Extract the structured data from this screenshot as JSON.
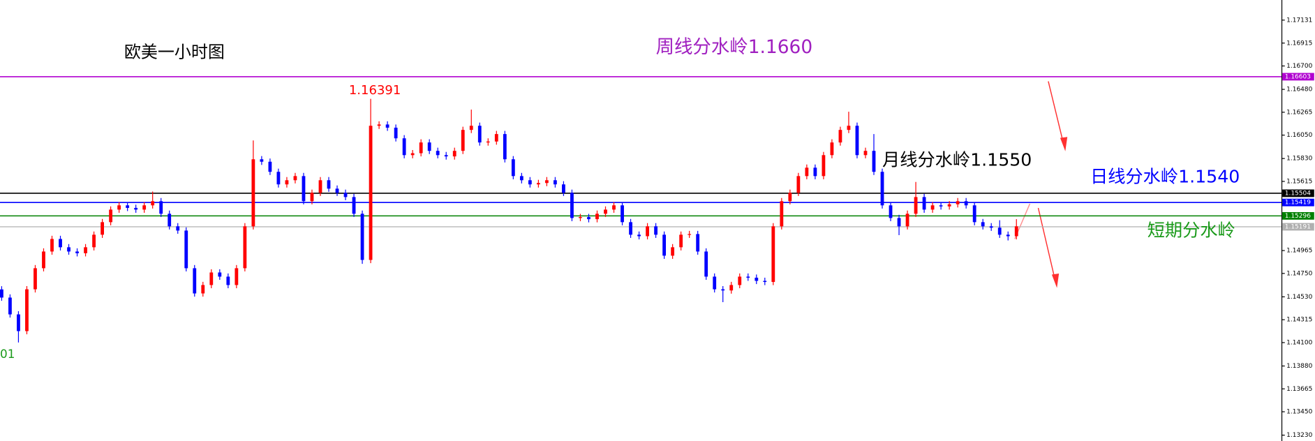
{
  "chart_data": {
    "type": "candlestick",
    "title": "欧美一小时图",
    "up_color": "#ff0000",
    "down_color": "#0000ff",
    "ylim": [
      1.13175,
      1.1732
    ],
    "yticks": [
      1.17131,
      1.16915,
      {
        "value": 1.167,
        "label": "1.16700"
      },
      {
        "value": 1.1648,
        "label": "1.16480"
      },
      1.16265,
      {
        "value": 1.1605,
        "label": "1.16050"
      },
      {
        "value": 1.1583,
        "label": "1.15830"
      },
      1.15615,
      1.14965,
      {
        "value": 1.1475,
        "label": "1.14750"
      },
      {
        "value": 1.1453,
        "label": "1.14530"
      },
      1.14315,
      {
        "value": 1.141,
        "label": "1.14100"
      },
      {
        "value": 1.1388,
        "label": "1.13880"
      },
      1.13665,
      {
        "value": 1.1345,
        "label": "1.13450"
      },
      {
        "value": 1.1323,
        "label": "1.13230"
      }
    ],
    "levels": [
      {
        "value": 1.16603,
        "color": "#b000d0"
      },
      {
        "value": 1.15504,
        "color": "#000000"
      },
      {
        "value": 1.15419,
        "color": "#0000ff"
      },
      {
        "value": 1.15296,
        "color": "#008000"
      },
      {
        "value": 1.15191,
        "color": "#b0b0b0"
      }
    ],
    "annotations": [
      {
        "text": "周线分水岭1.1660",
        "color": "#a020c0"
      },
      {
        "text": "1.16391",
        "color": "#ff0000"
      },
      {
        "text": "月线分水岭1.1550",
        "color": "#000000"
      },
      {
        "text": "日线分水岭1.1540",
        "color": "#0000ff"
      },
      {
        "text": "短期分水岭",
        "color": "#1a9a1a"
      },
      {
        "text": "01",
        "color": "#1a9a1a"
      }
    ],
    "open": [
      1.146,
      1.14523,
      1.14365,
      1.14208,
      1.14601,
      1.14799,
      1.14956,
      1.15074,
      1.14996,
      1.14956,
      1.1494,
      1.14996,
      1.15114,
      1.15232,
      1.1535,
      1.1539,
      1.15366,
      1.1535,
      1.1539,
      1.15429,
      1.15311,
      1.15193,
      1.15153,
      1.14799,
      1.14562,
      1.14641,
      1.14759,
      1.1472,
      1.14641,
      1.14799,
      1.15193,
      1.15823,
      1.158,
      1.15705,
      1.15587,
      1.15626,
      1.15665,
      1.15429,
      1.15508,
      1.15626,
      1.15547,
      1.15508,
      1.15468,
      1.15311,
      1.14877,
      1.16138,
      1.1615,
      1.1612,
      1.1602,
      1.15862,
      1.1588,
      1.15981,
      1.15902,
      1.15862,
      1.1585,
      1.15902,
      1.16099,
      1.16138,
      1.15981,
      1.1599,
      1.1606,
      1.15823,
      1.15665,
      1.15626,
      1.15587,
      1.156,
      1.15626,
      1.15587,
      1.15508,
      1.15271,
      1.1528,
      1.1526,
      1.15311,
      1.1535,
      1.1539,
      1.15232,
      1.15114,
      1.151,
      1.15193,
      1.15114,
      1.14917,
      1.14996,
      1.15114,
      1.1512,
      1.14956,
      1.1472,
      1.14601,
      1.1459,
      1.14641,
      1.1472,
      1.1471,
      1.1468,
      1.1467,
      1.15193,
      1.15429,
      1.15508,
      1.15665,
      1.15744,
      1.15665,
      1.15862,
      1.15981,
      1.16099,
      1.16138,
      1.15862,
      1.15902,
      1.15705,
      1.1539,
      1.15271,
      1.15193,
      1.15311,
      1.15468,
      1.1535,
      1.1539,
      1.1538,
      1.154,
      1.15429,
      1.1539,
      1.15232,
      1.15193,
      1.1518,
      1.15114,
      1.151
    ],
    "high": [
      1.1463,
      1.14553,
      1.14395,
      1.14631,
      1.14829,
      1.14986,
      1.15104,
      1.15104,
      1.15026,
      1.14986,
      1.15026,
      1.15144,
      1.15262,
      1.1538,
      1.1542,
      1.1542,
      1.15396,
      1.1542,
      1.1552,
      1.15459,
      1.15341,
      1.15223,
      1.15183,
      1.14829,
      1.14671,
      1.14789,
      1.14789,
      1.1475,
      1.14829,
      1.15223,
      1.16,
      1.15853,
      1.1583,
      1.15735,
      1.15656,
      1.15695,
      1.15695,
      1.15538,
      1.15656,
      1.15656,
      1.15577,
      1.15538,
      1.15498,
      1.15341,
      1.16391,
      1.1618,
      1.1618,
      1.1615,
      1.1605,
      1.1591,
      1.16011,
      1.16011,
      1.15932,
      1.15892,
      1.15932,
      1.16129,
      1.1629,
      1.16168,
      1.1602,
      1.1609,
      1.1609,
      1.15853,
      1.15695,
      1.15656,
      1.1563,
      1.15656,
      1.15656,
      1.15617,
      1.15538,
      1.1531,
      1.1531,
      1.15341,
      1.1538,
      1.1542,
      1.1542,
      1.15262,
      1.15144,
      1.15223,
      1.15223,
      1.15144,
      1.15026,
      1.15144,
      1.1515,
      1.1515,
      1.14986,
      1.1475,
      1.14631,
      1.14671,
      1.1475,
      1.1475,
      1.1474,
      1.1471,
      1.15223,
      1.15459,
      1.15538,
      1.15695,
      1.15774,
      1.15774,
      1.15892,
      1.16011,
      1.16129,
      1.1627,
      1.16168,
      1.15932,
      1.1606,
      1.15735,
      1.1542,
      1.15301,
      1.15341,
      1.1561,
      1.15498,
      1.1542,
      1.1542,
      1.1543,
      1.15459,
      1.15459,
      1.1542,
      1.15262,
      1.15223,
      1.1525,
      1.15144,
      1.1526
    ],
    "low": [
      1.14493,
      1.14335,
      1.14101,
      1.14178,
      1.14571,
      1.14769,
      1.14926,
      1.14966,
      1.14926,
      1.1491,
      1.1491,
      1.14966,
      1.15084,
      1.15202,
      1.1532,
      1.15336,
      1.1532,
      1.1532,
      1.1536,
      1.15281,
      1.15163,
      1.15123,
      1.14769,
      1.14532,
      1.14532,
      1.14611,
      1.1469,
      1.14611,
      1.14611,
      1.14769,
      1.15163,
      1.1577,
      1.15675,
      1.15557,
      1.15557,
      1.15596,
      1.15399,
      1.15399,
      1.15478,
      1.15517,
      1.15478,
      1.15438,
      1.15281,
      1.1484,
      1.14847,
      1.16108,
      1.1609,
      1.1599,
      1.15832,
      1.15832,
      1.1585,
      1.15872,
      1.15832,
      1.1582,
      1.1582,
      1.15872,
      1.16069,
      1.15951,
      1.15951,
      1.1596,
      1.15793,
      1.15635,
      1.15596,
      1.15557,
      1.15557,
      1.1557,
      1.15557,
      1.15478,
      1.15241,
      1.15241,
      1.1523,
      1.1523,
      1.15281,
      1.1532,
      1.15202,
      1.15084,
      1.1507,
      1.1507,
      1.15084,
      1.14887,
      1.14887,
      1.14966,
      1.15084,
      1.14926,
      1.1469,
      1.14571,
      1.1448,
      1.1456,
      1.14611,
      1.1468,
      1.1465,
      1.1464,
      1.1464,
      1.15163,
      1.15399,
      1.15478,
      1.15635,
      1.15635,
      1.15635,
      1.15832,
      1.15951,
      1.16069,
      1.15832,
      1.15832,
      1.15675,
      1.1536,
      1.15241,
      1.1511,
      1.15163,
      1.15281,
      1.1532,
      1.1532,
      1.1535,
      1.1535,
      1.1537,
      1.1536,
      1.15202,
      1.15163,
      1.1515,
      1.15084,
      1.1506,
      1.1507
    ],
    "close": [
      1.14523,
      1.14365,
      1.14208,
      1.14601,
      1.14799,
      1.14956,
      1.15074,
      1.14996,
      1.14956,
      1.1494,
      1.14996,
      1.15114,
      1.15232,
      1.1535,
      1.1539,
      1.15366,
      1.1535,
      1.1539,
      1.15429,
      1.15311,
      1.15193,
      1.15153,
      1.14799,
      1.14562,
      1.14641,
      1.14759,
      1.1472,
      1.14641,
      1.14799,
      1.15193,
      1.15823,
      1.158,
      1.15705,
      1.15587,
      1.15626,
      1.15665,
      1.15429,
      1.15508,
      1.15626,
      1.15547,
      1.15508,
      1.15468,
      1.15311,
      1.14877,
      1.16138,
      1.1615,
      1.1612,
      1.1602,
      1.15862,
      1.1588,
      1.15981,
      1.15902,
      1.15862,
      1.1585,
      1.15902,
      1.16099,
      1.16138,
      1.15981,
      1.1599,
      1.1606,
      1.15823,
      1.15665,
      1.15626,
      1.15587,
      1.156,
      1.15626,
      1.15587,
      1.15508,
      1.15271,
      1.1528,
      1.1526,
      1.15311,
      1.1535,
      1.1539,
      1.15232,
      1.15114,
      1.151,
      1.15193,
      1.15114,
      1.14917,
      1.14996,
      1.15114,
      1.1512,
      1.14956,
      1.1472,
      1.14601,
      1.1459,
      1.14641,
      1.1472,
      1.1471,
      1.1468,
      1.1467,
      1.15193,
      1.15429,
      1.15508,
      1.15665,
      1.15744,
      1.15665,
      1.15862,
      1.15981,
      1.16099,
      1.16138,
      1.15862,
      1.15902,
      1.15705,
      1.1539,
      1.15271,
      1.15193,
      1.15311,
      1.15468,
      1.1535,
      1.1539,
      1.1538,
      1.154,
      1.15429,
      1.1539,
      1.15232,
      1.15193,
      1.1518,
      1.15114,
      1.151,
      1.15193
    ]
  }
}
